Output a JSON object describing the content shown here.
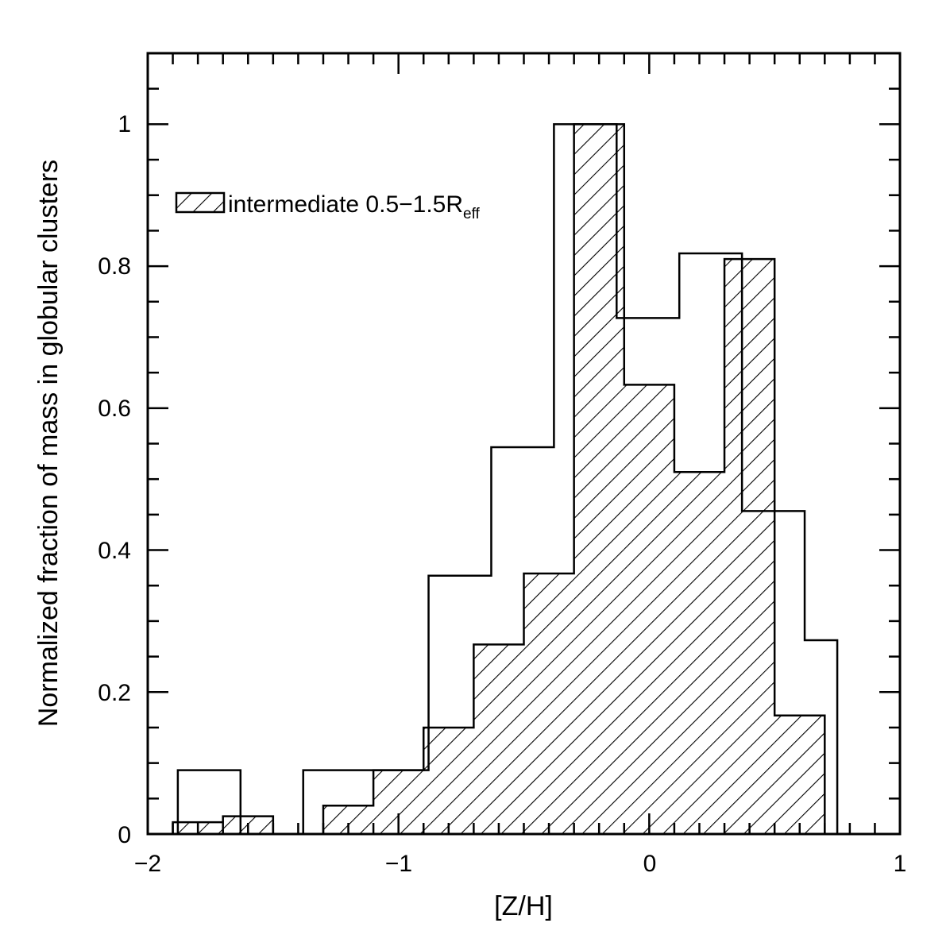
{
  "chart_data": {
    "type": "bar",
    "title": "",
    "xlabel": "[Z/H]",
    "ylabel": "Normalized fraction of mass in globular clusters",
    "xlim": [
      -2,
      1
    ],
    "ylim": [
      0,
      1.1
    ],
    "x_ticks": [
      -2,
      -1,
      0,
      1
    ],
    "x_tick_labels": [
      "−2",
      "−1",
      "0",
      "1"
    ],
    "y_ticks": [
      0,
      0.2,
      0.4,
      0.6,
      0.8,
      1
    ],
    "y_tick_labels": [
      "0",
      "0.2",
      "0.4",
      "0.6",
      "0.8",
      "1"
    ],
    "grid": false,
    "legend": {
      "position": "upper-left",
      "entry_main": "intermediate 0.5−1.5R",
      "entry_sub": "eff"
    },
    "series": [
      {
        "style": "outline",
        "edges": [
          -1.88,
          -1.63,
          -1.38,
          -1.13,
          -0.88,
          -0.63,
          -0.38,
          -0.13,
          0.12,
          0.37,
          0.62,
          0.75
        ],
        "values": [
          0.09,
          0.0,
          0.09,
          0.09,
          0.364,
          0.545,
          1.0,
          0.727,
          0.818,
          0.455,
          0.273
        ]
      },
      {
        "style": "hatched",
        "edges": [
          -1.99,
          -1.9,
          -1.8,
          -1.7,
          -1.6,
          -1.5,
          -1.4,
          -1.3,
          -1.1,
          -0.9,
          -0.7,
          -0.5,
          -0.3,
          -0.1,
          0.1,
          0.3,
          0.5,
          0.7
        ],
        "values": [
          0.0,
          0.0167,
          0.0167,
          0.025,
          0.025,
          0.0,
          0.0,
          0.04,
          0.09,
          0.15,
          0.267,
          0.367,
          1.0,
          0.633,
          0.51,
          0.81,
          0.167
        ]
      }
    ]
  }
}
